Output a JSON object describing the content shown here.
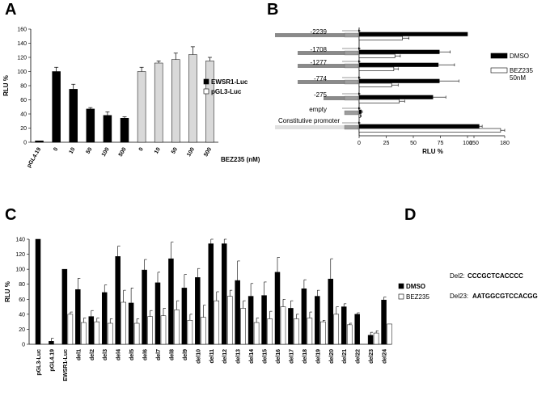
{
  "chart_data": [
    {
      "panel": "A",
      "type": "bar",
      "categories": [
        "pGL4.19",
        "0",
        "10",
        "50",
        "100",
        "500",
        "0",
        "10",
        "50",
        "100",
        "500"
      ],
      "series": [
        {
          "name": "EWSR1-Luc",
          "values": [
            2,
            100,
            75,
            47,
            38,
            34,
            null,
            null,
            null,
            null,
            null
          ],
          "errors": [
            0,
            6,
            7,
            2,
            5,
            2,
            0,
            0,
            0,
            0,
            0
          ],
          "color": "#000000"
        },
        {
          "name": "pGL3-Luc",
          "values": [
            null,
            null,
            null,
            null,
            null,
            null,
            100,
            112,
            117,
            124,
            115
          ],
          "errors": [
            0,
            0,
            0,
            0,
            0,
            0,
            6,
            3,
            9,
            11,
            5
          ],
          "color": "#d9d9d9"
        }
      ],
      "ylabel": "RLU %",
      "xlabel": "BEZ235 (nM)",
      "yticks": [
        "0",
        "20",
        "40",
        "60",
        "80",
        "100",
        "120",
        "140",
        "160"
      ],
      "ylim": [
        0,
        160
      ],
      "legend": "right"
    },
    {
      "panel": "B",
      "type": "bar",
      "orientation": "horizontal",
      "categories": [
        "-2239",
        "-1708",
        "-1277",
        "-774",
        "-275",
        "empty",
        "Constitutive promoter"
      ],
      "series": [
        {
          "name": "DMSO",
          "values": [
            100,
            74,
            73,
            74,
            68,
            2,
            155
          ],
          "errors": [
            0,
            10,
            15,
            18,
            12,
            1,
            3
          ],
          "color": "#000000"
        },
        {
          "name": "BEZ235 50nM",
          "values": [
            40,
            33,
            32,
            30,
            37,
            1,
            176
          ],
          "errors": [
            6,
            5,
            4,
            6,
            5,
            1,
            4
          ],
          "color": "#ffffff"
        }
      ],
      "xlabel": "RLU %",
      "xticks": [
        "0",
        "25",
        "50",
        "75",
        "100",
        "150",
        "180"
      ],
      "legend": "right"
    },
    {
      "panel": "C",
      "type": "bar",
      "categories": [
        "pGL3-Luc",
        "pGL4.19",
        "EWSR1-Luc",
        "del1",
        "del2",
        "del3",
        "del4",
        "del5",
        "del6",
        "del7",
        "del8",
        "del9",
        "del10",
        "del11",
        "del12",
        "del13",
        "del14",
        "del15",
        "del16",
        "del17",
        "del18",
        "del19",
        "del20",
        "del21",
        "del22",
        "del23",
        "del24"
      ],
      "series": [
        {
          "name": "DMSO",
          "values": [
            140,
            4,
            100,
            73,
            37,
            69,
            117,
            55,
            99,
            82,
            114,
            75,
            89,
            134,
            134,
            85,
            64,
            65,
            96,
            48,
            74,
            64,
            87,
            50,
            40,
            12,
            59
          ],
          "errors": [
            0,
            4,
            0,
            15,
            8,
            10,
            14,
            20,
            14,
            14,
            22,
            18,
            12,
            8,
            6,
            26,
            17,
            18,
            20,
            10,
            12,
            8,
            27,
            4,
            2,
            4,
            4
          ],
          "color": "#000000"
        },
        {
          "name": "BEZ235",
          "values": [
            null,
            null,
            40,
            29,
            30,
            28,
            56,
            28,
            37,
            38,
            46,
            32,
            36,
            58,
            64,
            48,
            29,
            34,
            50,
            34,
            35,
            30,
            40,
            26,
            null,
            15,
            27
          ],
          "errors": [
            0,
            0,
            3,
            6,
            5,
            6,
            16,
            6,
            8,
            10,
            12,
            8,
            16,
            12,
            8,
            10,
            6,
            10,
            10,
            6,
            8,
            2,
            10,
            2,
            0,
            3,
            0
          ],
          "color": "#ffffff"
        }
      ],
      "ylabel": "RLU %",
      "yticks": [
        "0",
        "20",
        "40",
        "60",
        "80",
        "100",
        "120",
        "140"
      ],
      "ylim": [
        0,
        140
      ],
      "legend": "right"
    }
  ],
  "panels": {
    "a": {
      "letter": "A",
      "legend": [
        "EWSR1-Luc",
        "pGL3-Luc"
      ],
      "xlabel": "BEZ235 (nM)"
    },
    "b": {
      "letter": "B",
      "legend_dmso": "DMSO",
      "legend_bez_1": "BEZ235",
      "legend_bez_2": "50nM"
    },
    "c": {
      "letter": "C",
      "legend": [
        "DMSO",
        "BEZ235"
      ]
    },
    "d": {
      "letter": "D",
      "sequences": [
        {
          "label": "Del2:",
          "seq": "CCCGCTCACCCC"
        },
        {
          "label": "Del23:",
          "seq": "AATGGCGTCCACGG"
        }
      ]
    }
  }
}
